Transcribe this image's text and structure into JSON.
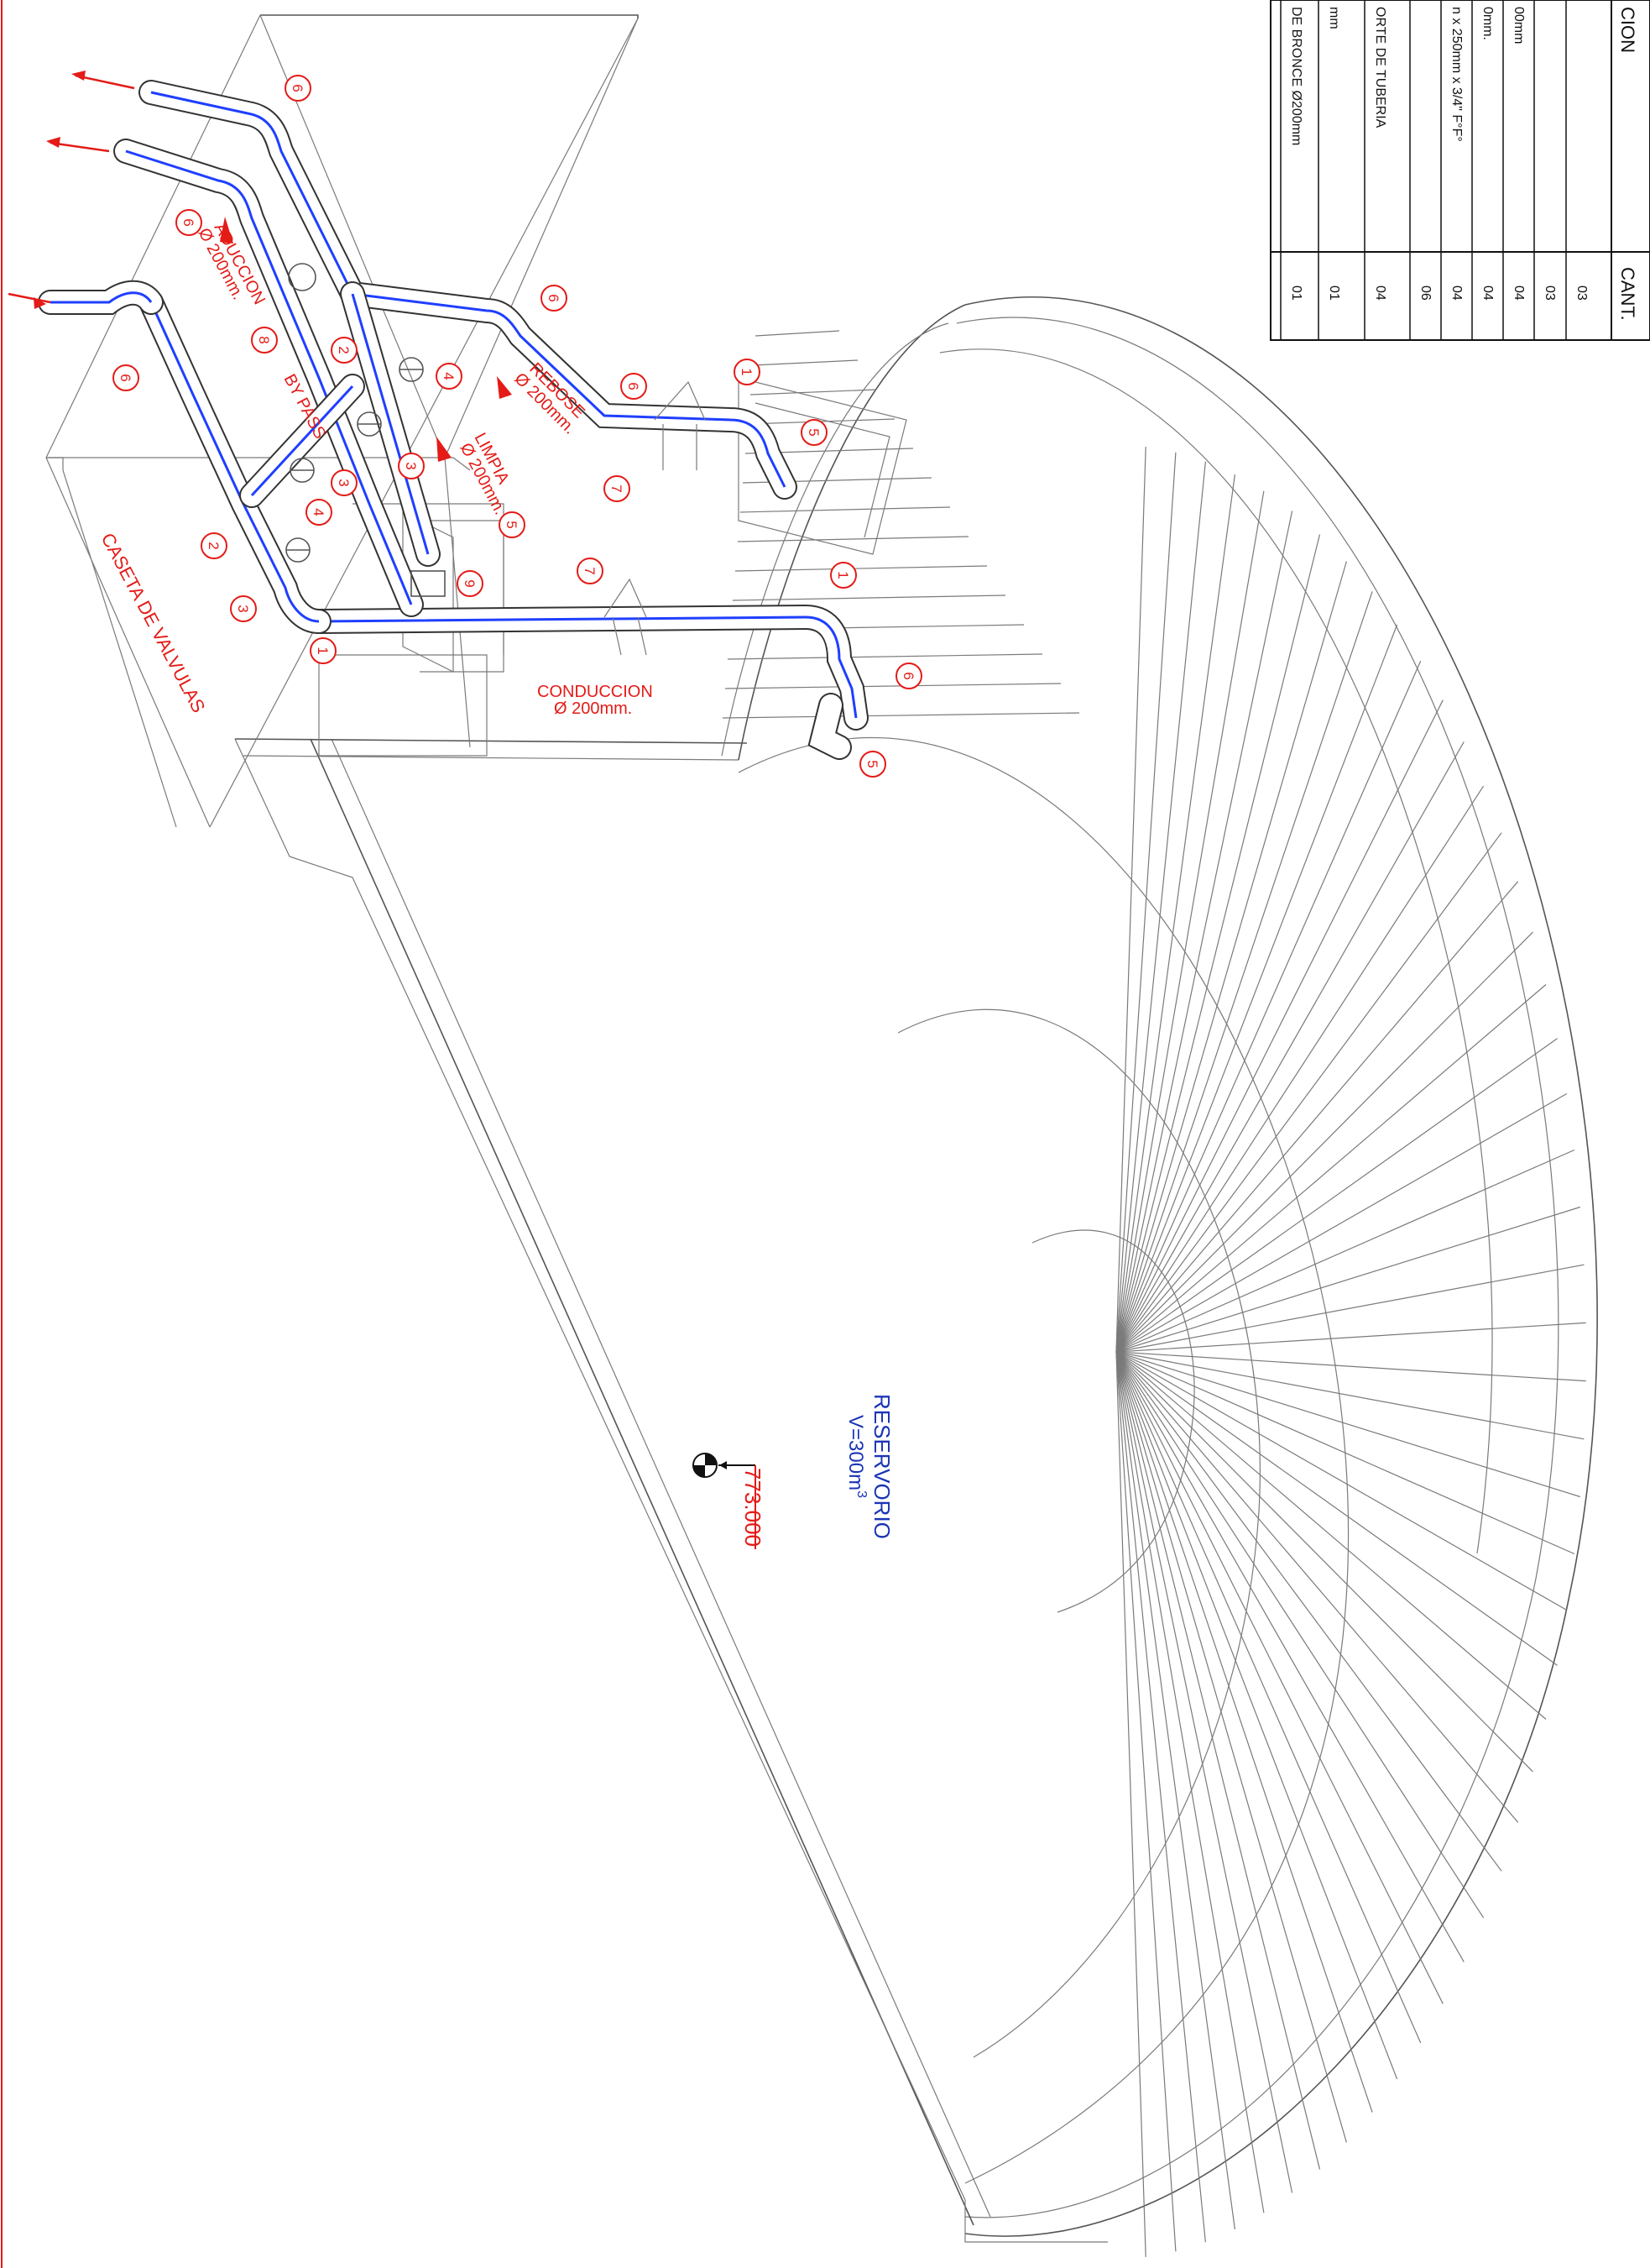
{
  "labels": {
    "caseta": "CASETA DE VALVULAS",
    "aduccion": "ADUCCION",
    "aduccion_dia": "Ø 200mm.",
    "bypass": "BY PASS",
    "limpia": "LIMPIA",
    "limpia_dia": "Ø 200mm.",
    "rebose": "REBOSE",
    "rebose_dia": "Ø 200mm.",
    "conduccion": "CONDUCCION",
    "conduccion_dia": "Ø 200mm.",
    "reservorio": "RESERVORIO",
    "volumen": "V=300m",
    "volumen_sup": "3",
    "cota": "773.000"
  },
  "table": {
    "header_desc": "CION",
    "header_cant": "CANT.",
    "rows": [
      {
        "desc": "",
        "cant": "03"
      },
      {
        "desc": "",
        "cant": "03"
      },
      {
        "desc": "00mm",
        "cant": "04"
      },
      {
        "desc": "0mm.",
        "cant": "04"
      },
      {
        "desc": "n x 250mm x 3/4\" F°F°",
        "cant": "04"
      },
      {
        "desc": "",
        "cant": "06"
      },
      {
        "desc": "ORTE DE TUBERIA",
        "cant": "04"
      },
      {
        "desc": "mm",
        "cant": "01"
      },
      {
        "desc": "DE BRONCE Ø200mm",
        "cant": "01"
      }
    ]
  },
  "markers": {
    "m1": "1",
    "m2": "2",
    "m3": "3",
    "m4": "4",
    "m5": "5",
    "m6": "6",
    "m7": "7",
    "m8": "8",
    "m9": "9"
  },
  "colors": {
    "red": "#e41b17",
    "blue": "#1a35b5",
    "axis": "#1f3fff"
  }
}
